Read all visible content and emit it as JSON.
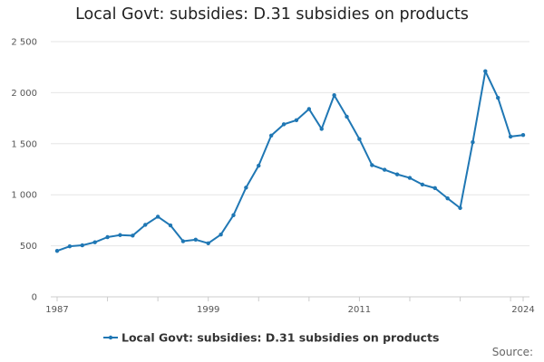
{
  "chart_data": {
    "type": "line",
    "title": "Local Govt: subsidies: D.31 subsidies on products",
    "x_tick_labels": [
      "1987",
      "1999",
      "2011",
      "2024"
    ],
    "y_tick_labels": [
      "0",
      "500",
      "1 000",
      "1 500",
      "2 000",
      "2 500"
    ],
    "ylim": [
      0,
      2500
    ],
    "xlim": [
      1987,
      2024
    ],
    "grid": "horizontal",
    "legend_position": "bottom",
    "series": [
      {
        "name": "Local Govt: subsidies: D.31 subsidies on products",
        "color": "#1f77b4",
        "x": [
          1987,
          1988,
          1989,
          1990,
          1991,
          1992,
          1993,
          1994,
          1995,
          1996,
          1997,
          1998,
          1999,
          2000,
          2001,
          2002,
          2003,
          2004,
          2005,
          2006,
          2007,
          2008,
          2009,
          2010,
          2011,
          2012,
          2013,
          2014,
          2015,
          2016,
          2017,
          2018,
          2019,
          2020,
          2021,
          2022,
          2023,
          2024
        ],
        "values": [
          450,
          495,
          505,
          535,
          585,
          605,
          600,
          705,
          785,
          700,
          545,
          560,
          525,
          610,
          800,
          1070,
          1285,
          1580,
          1690,
          1730,
          1840,
          1645,
          1975,
          1765,
          1545,
          1290,
          1245,
          1200,
          1165,
          1100,
          1065,
          965,
          870,
          1515,
          2210,
          1950,
          1570,
          1585
        ]
      }
    ]
  },
  "footer": {
    "source_label": "Source:"
  }
}
